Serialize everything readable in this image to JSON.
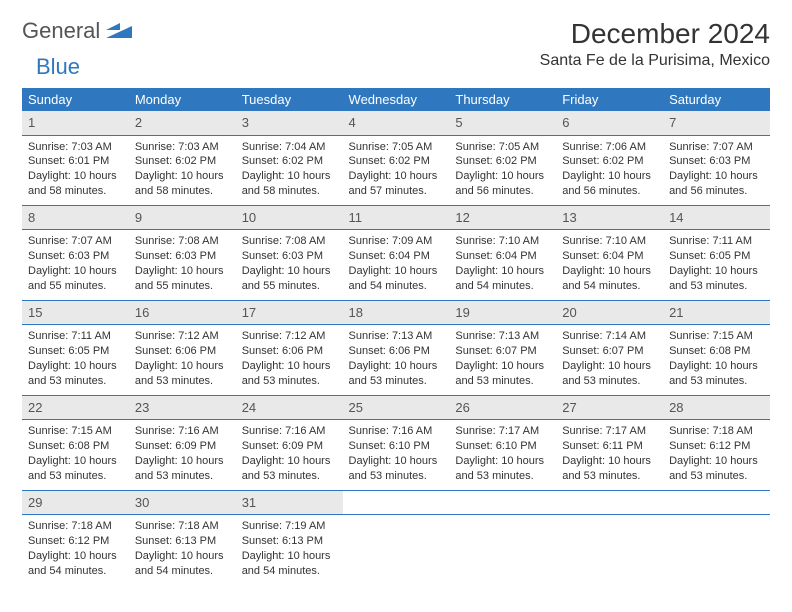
{
  "logo": {
    "word1": "General",
    "word2": "Blue",
    "color1": "#555555",
    "color2": "#2f78bf"
  },
  "title": "December 2024",
  "location": "Santa Fe de la Purisima, Mexico",
  "weekdays": [
    "Sunday",
    "Monday",
    "Tuesday",
    "Wednesday",
    "Thursday",
    "Friday",
    "Saturday"
  ],
  "colors": {
    "header_bg": "#2f78bf",
    "header_text": "#ffffff",
    "daynum_bg": "#e9e9e9",
    "border": "#2f78bf",
    "body_text": "#333333",
    "background": "#ffffff"
  },
  "fonts": {
    "title_size": 28,
    "location_size": 16,
    "weekday_size": 13,
    "daynum_size": 13,
    "cell_size": 11
  },
  "weeks": [
    [
      {
        "day": "1",
        "sunrise": "Sunrise: 7:03 AM",
        "sunset": "Sunset: 6:01 PM",
        "daylight": "Daylight: 10 hours and 58 minutes."
      },
      {
        "day": "2",
        "sunrise": "Sunrise: 7:03 AM",
        "sunset": "Sunset: 6:02 PM",
        "daylight": "Daylight: 10 hours and 58 minutes."
      },
      {
        "day": "3",
        "sunrise": "Sunrise: 7:04 AM",
        "sunset": "Sunset: 6:02 PM",
        "daylight": "Daylight: 10 hours and 58 minutes."
      },
      {
        "day": "4",
        "sunrise": "Sunrise: 7:05 AM",
        "sunset": "Sunset: 6:02 PM",
        "daylight": "Daylight: 10 hours and 57 minutes."
      },
      {
        "day": "5",
        "sunrise": "Sunrise: 7:05 AM",
        "sunset": "Sunset: 6:02 PM",
        "daylight": "Daylight: 10 hours and 56 minutes."
      },
      {
        "day": "6",
        "sunrise": "Sunrise: 7:06 AM",
        "sunset": "Sunset: 6:02 PM",
        "daylight": "Daylight: 10 hours and 56 minutes."
      },
      {
        "day": "7",
        "sunrise": "Sunrise: 7:07 AM",
        "sunset": "Sunset: 6:03 PM",
        "daylight": "Daylight: 10 hours and 56 minutes."
      }
    ],
    [
      {
        "day": "8",
        "sunrise": "Sunrise: 7:07 AM",
        "sunset": "Sunset: 6:03 PM",
        "daylight": "Daylight: 10 hours and 55 minutes."
      },
      {
        "day": "9",
        "sunrise": "Sunrise: 7:08 AM",
        "sunset": "Sunset: 6:03 PM",
        "daylight": "Daylight: 10 hours and 55 minutes."
      },
      {
        "day": "10",
        "sunrise": "Sunrise: 7:08 AM",
        "sunset": "Sunset: 6:03 PM",
        "daylight": "Daylight: 10 hours and 55 minutes."
      },
      {
        "day": "11",
        "sunrise": "Sunrise: 7:09 AM",
        "sunset": "Sunset: 6:04 PM",
        "daylight": "Daylight: 10 hours and 54 minutes."
      },
      {
        "day": "12",
        "sunrise": "Sunrise: 7:10 AM",
        "sunset": "Sunset: 6:04 PM",
        "daylight": "Daylight: 10 hours and 54 minutes."
      },
      {
        "day": "13",
        "sunrise": "Sunrise: 7:10 AM",
        "sunset": "Sunset: 6:04 PM",
        "daylight": "Daylight: 10 hours and 54 minutes."
      },
      {
        "day": "14",
        "sunrise": "Sunrise: 7:11 AM",
        "sunset": "Sunset: 6:05 PM",
        "daylight": "Daylight: 10 hours and 53 minutes."
      }
    ],
    [
      {
        "day": "15",
        "sunrise": "Sunrise: 7:11 AM",
        "sunset": "Sunset: 6:05 PM",
        "daylight": "Daylight: 10 hours and 53 minutes."
      },
      {
        "day": "16",
        "sunrise": "Sunrise: 7:12 AM",
        "sunset": "Sunset: 6:06 PM",
        "daylight": "Daylight: 10 hours and 53 minutes."
      },
      {
        "day": "17",
        "sunrise": "Sunrise: 7:12 AM",
        "sunset": "Sunset: 6:06 PM",
        "daylight": "Daylight: 10 hours and 53 minutes."
      },
      {
        "day": "18",
        "sunrise": "Sunrise: 7:13 AM",
        "sunset": "Sunset: 6:06 PM",
        "daylight": "Daylight: 10 hours and 53 minutes."
      },
      {
        "day": "19",
        "sunrise": "Sunrise: 7:13 AM",
        "sunset": "Sunset: 6:07 PM",
        "daylight": "Daylight: 10 hours and 53 minutes."
      },
      {
        "day": "20",
        "sunrise": "Sunrise: 7:14 AM",
        "sunset": "Sunset: 6:07 PM",
        "daylight": "Daylight: 10 hours and 53 minutes."
      },
      {
        "day": "21",
        "sunrise": "Sunrise: 7:15 AM",
        "sunset": "Sunset: 6:08 PM",
        "daylight": "Daylight: 10 hours and 53 minutes."
      }
    ],
    [
      {
        "day": "22",
        "sunrise": "Sunrise: 7:15 AM",
        "sunset": "Sunset: 6:08 PM",
        "daylight": "Daylight: 10 hours and 53 minutes."
      },
      {
        "day": "23",
        "sunrise": "Sunrise: 7:16 AM",
        "sunset": "Sunset: 6:09 PM",
        "daylight": "Daylight: 10 hours and 53 minutes."
      },
      {
        "day": "24",
        "sunrise": "Sunrise: 7:16 AM",
        "sunset": "Sunset: 6:09 PM",
        "daylight": "Daylight: 10 hours and 53 minutes."
      },
      {
        "day": "25",
        "sunrise": "Sunrise: 7:16 AM",
        "sunset": "Sunset: 6:10 PM",
        "daylight": "Daylight: 10 hours and 53 minutes."
      },
      {
        "day": "26",
        "sunrise": "Sunrise: 7:17 AM",
        "sunset": "Sunset: 6:10 PM",
        "daylight": "Daylight: 10 hours and 53 minutes."
      },
      {
        "day": "27",
        "sunrise": "Sunrise: 7:17 AM",
        "sunset": "Sunset: 6:11 PM",
        "daylight": "Daylight: 10 hours and 53 minutes."
      },
      {
        "day": "28",
        "sunrise": "Sunrise: 7:18 AM",
        "sunset": "Sunset: 6:12 PM",
        "daylight": "Daylight: 10 hours and 53 minutes."
      }
    ],
    [
      {
        "day": "29",
        "sunrise": "Sunrise: 7:18 AM",
        "sunset": "Sunset: 6:12 PM",
        "daylight": "Daylight: 10 hours and 54 minutes."
      },
      {
        "day": "30",
        "sunrise": "Sunrise: 7:18 AM",
        "sunset": "Sunset: 6:13 PM",
        "daylight": "Daylight: 10 hours and 54 minutes."
      },
      {
        "day": "31",
        "sunrise": "Sunrise: 7:19 AM",
        "sunset": "Sunset: 6:13 PM",
        "daylight": "Daylight: 10 hours and 54 minutes."
      },
      null,
      null,
      null,
      null
    ]
  ]
}
